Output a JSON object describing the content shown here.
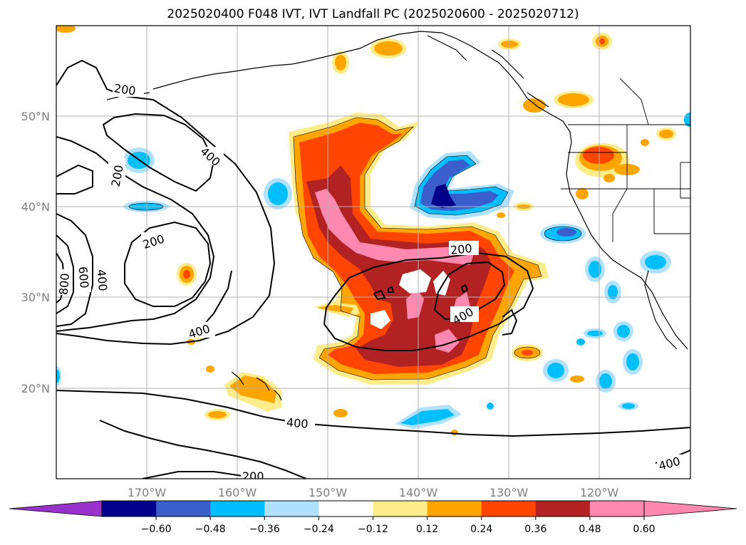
{
  "title": "2025020400 F048 IVT, IVT Landfall PC (2025020600 - 2025020712)",
  "map": {
    "lat_labels": [
      "50°N",
      "40°N",
      "30°N",
      "20°N"
    ],
    "lon_labels": [
      "170°W",
      "160°W",
      "150°W",
      "140°W",
      "130°W",
      "120°W"
    ],
    "contour_labels": [
      "200",
      "400",
      "200",
      "200",
      "400",
      "800",
      "600",
      "400",
      "400",
      "200",
      "400",
      "200",
      "400",
      "400"
    ]
  },
  "colorbar": {
    "ticks": [
      "−0.60",
      "−0.48",
      "−0.36",
      "−0.24",
      "−0.12",
      "0.12",
      "0.24",
      "0.36",
      "0.48",
      "0.60"
    ],
    "colors": {
      "under": "#9932cc",
      "bins": [
        "#00008b",
        "#3a5fcd",
        "#00bfff",
        "#b0e2ff",
        "#ffffff",
        "#ffec8b",
        "#ffa500",
        "#ff4500",
        "#b22222",
        "#ff88b0"
      ],
      "over": "#ff88b0"
    }
  }
}
